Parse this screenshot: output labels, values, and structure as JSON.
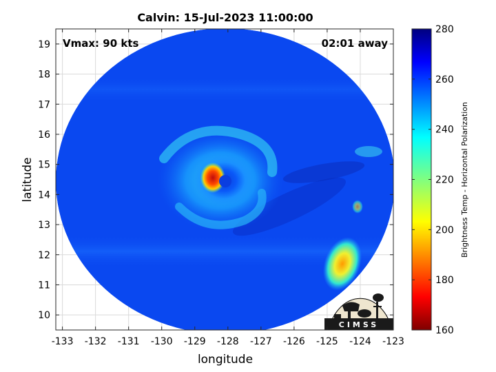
{
  "title": "Calvin: 15-Jul-2023 11:00:00",
  "vmax_label": "Vmax: 90 kts",
  "time_label": "02:01 away",
  "xlabel": "longitude",
  "ylabel": "latitude",
  "colorbar_label": "Brightness Temp - Horizontal Polarization",
  "logo_text": "CIMSS",
  "x_ticks": [
    "-133",
    "-132",
    "-131",
    "-130",
    "-129",
    "-128",
    "-127",
    "-126",
    "-125",
    "-124",
    "-123"
  ],
  "y_ticks": [
    "10",
    "11",
    "12",
    "13",
    "14",
    "15",
    "16",
    "17",
    "18",
    "19"
  ],
  "colorbar_ticks": [
    "160",
    "180",
    "200",
    "220",
    "240",
    "260",
    "280"
  ],
  "map_data": {
    "type": "heatmap",
    "xlim": [
      -133.2,
      -123
    ],
    "ylim": [
      9.5,
      19.5
    ],
    "clim": [
      160,
      280
    ],
    "colormap": "jet",
    "grid": true,
    "background_temp": 262,
    "swath_center": [
      -128.05,
      14.45
    ],
    "swath_radius_deg": 5.5,
    "storm_center": [
      -128.2,
      14.35
    ],
    "eyewall_min_temp": 185,
    "cold_cloud_patch": {
      "lon": -124.85,
      "lat": 11.8,
      "min_temp": 205
    }
  },
  "colors": {
    "swath_base": "#0a46f2",
    "warm_band": "#0b25c8",
    "eyewall_core": "#c81010",
    "grid": "#d9d9d9"
  }
}
